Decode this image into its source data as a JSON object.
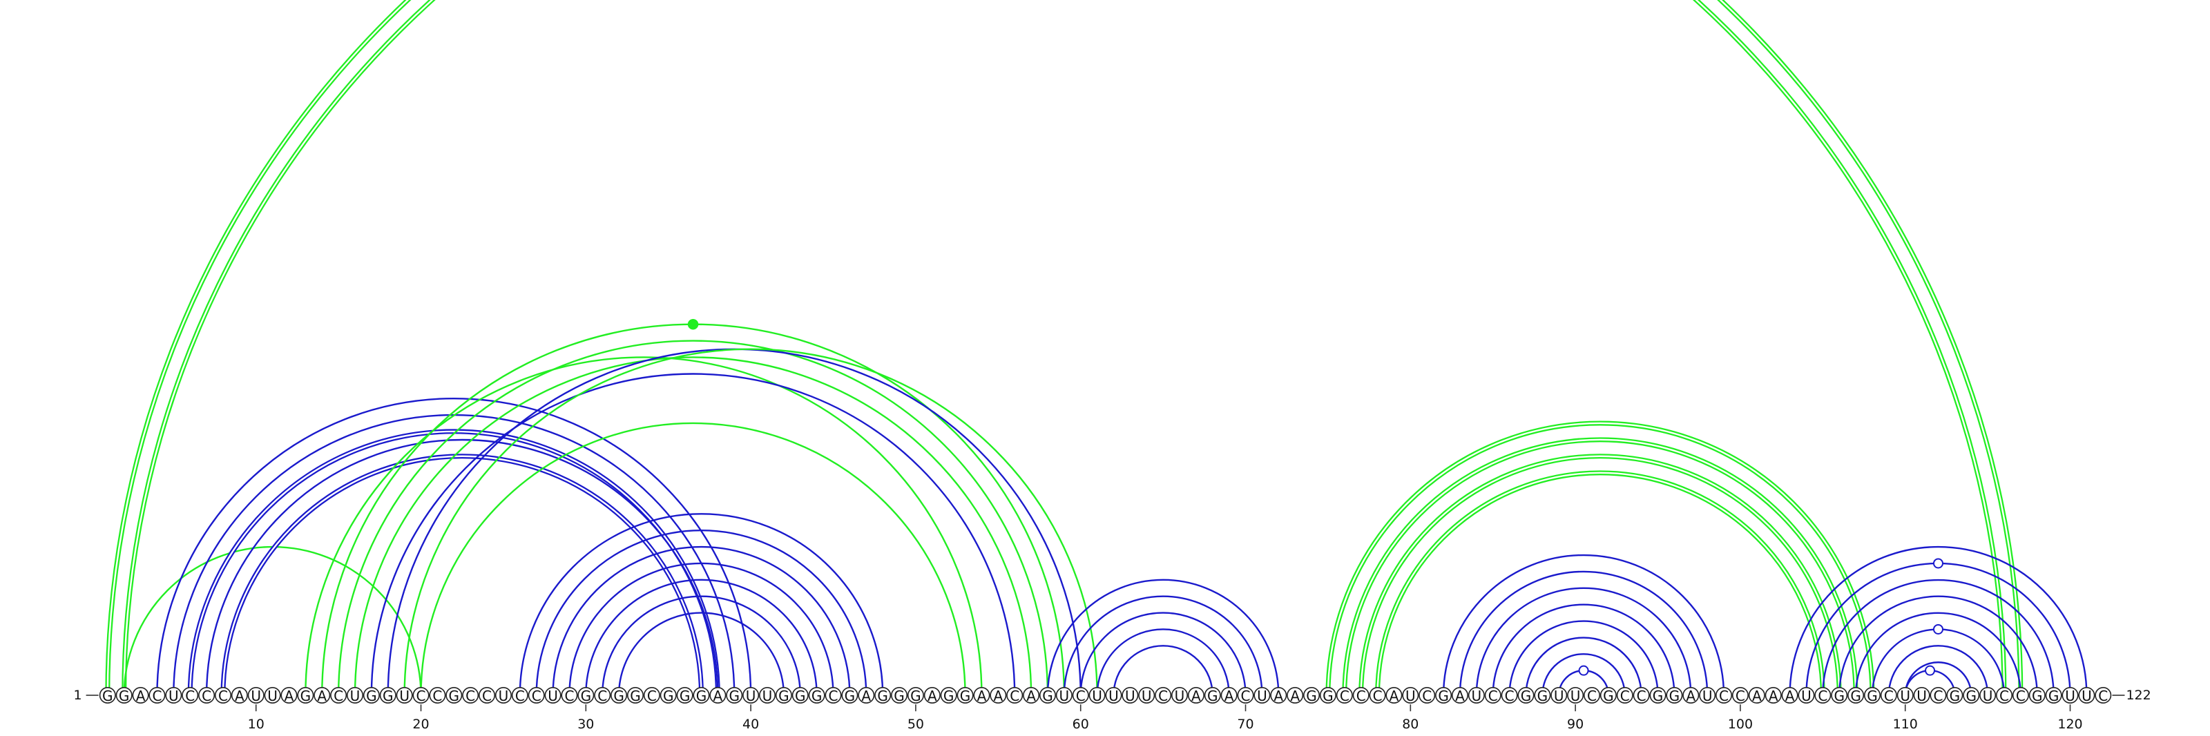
{
  "sequence": "GGACUCCCAUUAGACUGGUCCGCCUCCUCGCGGCGGGAGUUGGGCGAGGGAGGAACAGUCUUUUCUAGACUAAGGCCCAUCGAUCCGGUUCGCCGGAUCCAAAUCGGGCUUCGGUCCGGUUC",
  "start_label": "1",
  "end_label": "122",
  "ticks": [
    10,
    20,
    30,
    40,
    50,
    60,
    70,
    80,
    90,
    100,
    110,
    120
  ],
  "colors": {
    "green": "#22ee22",
    "blue": "#1a1acc",
    "backbone": "#222222"
  },
  "arcs": [
    {
      "i": 1,
      "j": 117,
      "color": "green",
      "double": true
    },
    {
      "i": 2,
      "j": 116,
      "color": "green",
      "double": true
    },
    {
      "i": 2,
      "j": 20,
      "color": "green",
      "double": false
    },
    {
      "i": 4,
      "j": 40,
      "color": "blue",
      "double": false
    },
    {
      "i": 5,
      "j": 39,
      "color": "blue",
      "double": false
    },
    {
      "i": 6,
      "j": 38,
      "color": "blue",
      "double": true
    },
    {
      "i": 7,
      "j": 38,
      "color": "blue",
      "double": false
    },
    {
      "i": 8,
      "j": 37,
      "color": "blue",
      "double": true
    },
    {
      "i": 13,
      "j": 54,
      "color": "green",
      "double": false
    },
    {
      "i": 14,
      "j": 59,
      "color": "green",
      "double": false
    },
    {
      "i": 15,
      "j": 58,
      "color": "green",
      "double": false
    },
    {
      "i": 16,
      "j": 57,
      "color": "green",
      "double": false
    },
    {
      "i": 17,
      "j": 56,
      "color": "blue",
      "double": false
    },
    {
      "i": 18,
      "j": 60,
      "color": "blue",
      "double": false
    },
    {
      "i": 19,
      "j": 61,
      "color": "green",
      "double": false
    },
    {
      "i": 20,
      "j": 53,
      "color": "green",
      "double": false
    },
    {
      "i": 26,
      "j": 48,
      "color": "blue",
      "double": false
    },
    {
      "i": 27,
      "j": 47,
      "color": "blue",
      "double": false
    },
    {
      "i": 28,
      "j": 46,
      "color": "blue",
      "double": false
    },
    {
      "i": 29,
      "j": 45,
      "color": "blue",
      "double": false
    },
    {
      "i": 30,
      "j": 44,
      "color": "blue",
      "double": false
    },
    {
      "i": 31,
      "j": 43,
      "color": "blue",
      "double": false
    },
    {
      "i": 32,
      "j": 42,
      "color": "blue",
      "double": false
    },
    {
      "i": 58,
      "j": 72,
      "color": "blue",
      "double": false
    },
    {
      "i": 59,
      "j": 71,
      "color": "blue",
      "double": false
    },
    {
      "i": 60,
      "j": 70,
      "color": "blue",
      "double": false
    },
    {
      "i": 61,
      "j": 69,
      "color": "blue",
      "double": false
    },
    {
      "i": 62,
      "j": 68,
      "color": "blue",
      "double": false
    },
    {
      "i": 75,
      "j": 108,
      "color": "green",
      "double": true
    },
    {
      "i": 76,
      "j": 107,
      "color": "green",
      "double": true
    },
    {
      "i": 77,
      "j": 106,
      "color": "green",
      "double": true
    },
    {
      "i": 78,
      "j": 105,
      "color": "green",
      "double": true
    },
    {
      "i": 82,
      "j": 99,
      "color": "blue",
      "double": false
    },
    {
      "i": 83,
      "j": 98,
      "color": "blue",
      "double": false
    },
    {
      "i": 84,
      "j": 97,
      "color": "blue",
      "double": false
    },
    {
      "i": 85,
      "j": 96,
      "color": "blue",
      "double": false
    },
    {
      "i": 86,
      "j": 95,
      "color": "blue",
      "double": false
    },
    {
      "i": 87,
      "j": 94,
      "color": "blue",
      "double": false
    },
    {
      "i": 88,
      "j": 93,
      "color": "blue",
      "double": false
    },
    {
      "i": 89,
      "j": 92,
      "color": "blue",
      "double": false
    },
    {
      "i": 103,
      "j": 121,
      "color": "blue",
      "double": false
    },
    {
      "i": 104,
      "j": 120,
      "color": "blue",
      "double": false
    },
    {
      "i": 105,
      "j": 119,
      "color": "blue",
      "double": false
    },
    {
      "i": 106,
      "j": 118,
      "color": "blue",
      "double": false
    },
    {
      "i": 107,
      "j": 117,
      "color": "blue",
      "double": false
    },
    {
      "i": 108,
      "j": 116,
      "color": "blue",
      "double": false
    },
    {
      "i": 109,
      "j": 115,
      "color": "blue",
      "double": false
    },
    {
      "i": 110,
      "j": 114,
      "color": "blue",
      "double": false
    },
    {
      "i": 110,
      "j": 113,
      "color": "blue",
      "double": false
    }
  ],
  "markers": [
    {
      "arc_i": 14,
      "arc_j": 59,
      "style": "filled",
      "color": "green"
    },
    {
      "arc_i": 89,
      "arc_j": 92,
      "style": "open",
      "color": "blue"
    },
    {
      "arc_i": 104,
      "arc_j": 120,
      "style": "open",
      "color": "blue"
    },
    {
      "arc_i": 108,
      "arc_j": 116,
      "style": "open",
      "color": "blue"
    },
    {
      "arc_i": 110,
      "arc_j": 113,
      "style": "open",
      "color": "blue"
    }
  ]
}
